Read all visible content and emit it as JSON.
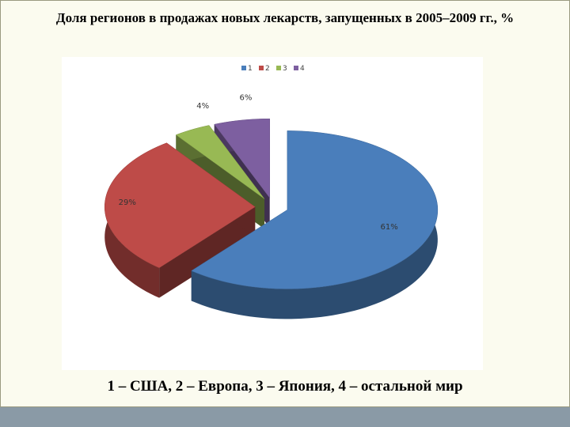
{
  "chart_data": {
    "type": "pie",
    "title": "Доля регионов в продажах новых лекарств, запущенных в 2005–2009 гг., %",
    "categories": [
      "1",
      "2",
      "3",
      "4"
    ],
    "series": [
      {
        "name": "1",
        "color": "#4a7ebb"
      },
      {
        "name": "2",
        "color": "#be4b48"
      },
      {
        "name": "3",
        "color": "#98b954"
      },
      {
        "name": "4",
        "color": "#7d5fa0"
      }
    ],
    "values": [
      61,
      29,
      4,
      6
    ],
    "value_labels": [
      "61%",
      "29%",
      "4%",
      "6%"
    ],
    "caption": "1 – США, 2 – Европа, 3 – Япония, 4 – остальной мир",
    "legend": "top"
  }
}
